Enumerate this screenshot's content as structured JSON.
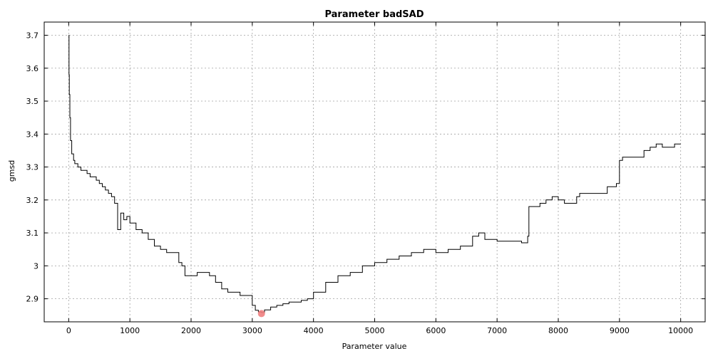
{
  "chart_data": {
    "type": "line",
    "title": "Parameter badSAD",
    "xlabel": "Parameter value",
    "ylabel": "gmsd",
    "xlim": [
      -400,
      10400
    ],
    "ylim": [
      2.83,
      3.74
    ],
    "xticks": [
      0,
      1000,
      2000,
      3000,
      4000,
      5000,
      6000,
      7000,
      8000,
      9000,
      10000
    ],
    "yticks": [
      2.9,
      3.0,
      3.1,
      3.2,
      3.3,
      3.4,
      3.5,
      3.6,
      3.7
    ],
    "ytick_labels": [
      "2.9",
      "3",
      "3.1",
      "3.2",
      "3.3",
      "3.4",
      "3.5",
      "3.6",
      "3.7"
    ],
    "grid": true,
    "series": [
      {
        "color": "#000000",
        "x": [
          0,
          5,
          10,
          20,
          30,
          50,
          80,
          100,
          150,
          200,
          250,
          300,
          350,
          400,
          450,
          500,
          550,
          600,
          650,
          700,
          750,
          800,
          850,
          900,
          950,
          1000,
          1100,
          1200,
          1300,
          1400,
          1500,
          1600,
          1700,
          1800,
          1850,
          1900,
          2000,
          2100,
          2200,
          2300,
          2400,
          2500,
          2600,
          2700,
          2800,
          2900,
          3000,
          3050,
          3100,
          3150,
          3200,
          3300,
          3400,
          3500,
          3600,
          3700,
          3800,
          3900,
          4000,
          4200,
          4400,
          4600,
          4800,
          5000,
          5200,
          5400,
          5600,
          5800,
          6000,
          6200,
          6400,
          6600,
          6700,
          6800,
          7000,
          7200,
          7400,
          7500,
          7520,
          7600,
          7700,
          7800,
          7900,
          8000,
          8100,
          8200,
          8300,
          8350,
          8400,
          8600,
          8800,
          8950,
          9000,
          9050,
          9200,
          9400,
          9500,
          9600,
          9700,
          9800,
          9900,
          10000
        ],
        "y": [
          3.7,
          3.58,
          3.52,
          3.45,
          3.38,
          3.34,
          3.32,
          3.31,
          3.3,
          3.29,
          3.29,
          3.28,
          3.27,
          3.27,
          3.26,
          3.25,
          3.24,
          3.23,
          3.22,
          3.21,
          3.19,
          3.11,
          3.16,
          3.14,
          3.15,
          3.13,
          3.11,
          3.1,
          3.08,
          3.06,
          3.05,
          3.04,
          3.04,
          3.01,
          3.0,
          2.97,
          2.97,
          2.98,
          2.98,
          2.97,
          2.95,
          2.93,
          2.92,
          2.92,
          2.91,
          2.91,
          2.88,
          2.865,
          2.86,
          2.858,
          2.866,
          2.875,
          2.88,
          2.885,
          2.89,
          2.89,
          2.895,
          2.9,
          2.92,
          2.95,
          2.97,
          2.98,
          3.0,
          3.01,
          3.02,
          3.03,
          3.04,
          3.05,
          3.04,
          3.05,
          3.06,
          3.09,
          3.1,
          3.08,
          3.075,
          3.075,
          3.07,
          3.09,
          3.18,
          3.18,
          3.19,
          3.2,
          3.21,
          3.2,
          3.19,
          3.19,
          3.21,
          3.22,
          3.22,
          3.22,
          3.24,
          3.25,
          3.32,
          3.33,
          3.33,
          3.35,
          3.36,
          3.37,
          3.36,
          3.36,
          3.37,
          3.37
        ]
      }
    ],
    "highlight_point": {
      "x": 3150,
      "y": 2.855,
      "color": "#f08080"
    }
  }
}
